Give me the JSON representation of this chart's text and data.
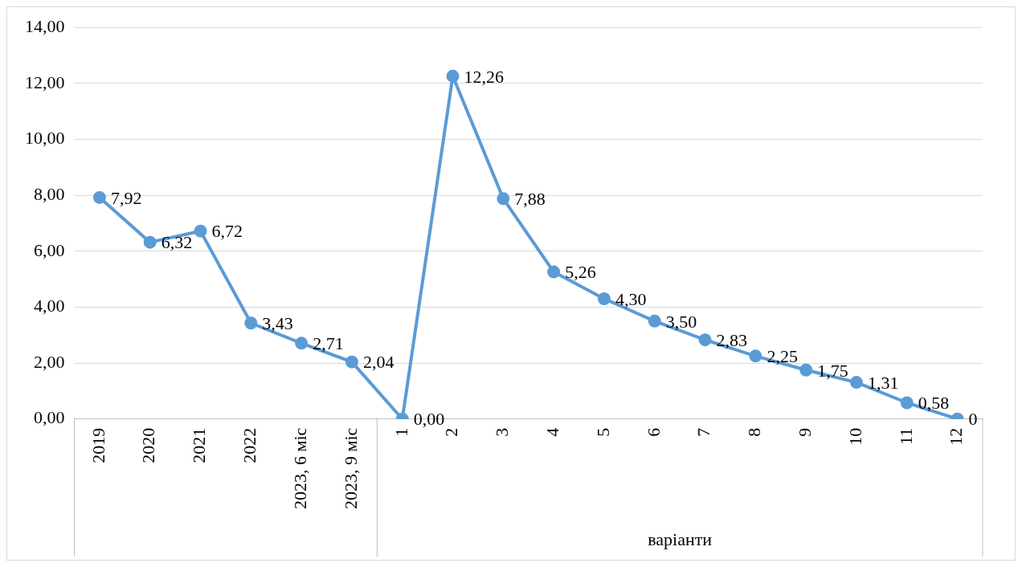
{
  "chart_data": {
    "type": "line",
    "xlabel": "варіанти",
    "categories": [
      "2019",
      "2020",
      "2021",
      "2022",
      "2023, 6 міс",
      "2023, 9 міс",
      "1",
      "2",
      "3",
      "4",
      "5",
      "6",
      "7",
      "8",
      "9",
      "10",
      "11",
      "12"
    ],
    "series": [
      {
        "color": "#5b9bd5",
        "values": [
          7.92,
          6.32,
          6.72,
          3.43,
          2.71,
          2.04,
          0.0,
          12.26,
          7.88,
          5.26,
          4.3,
          3.5,
          2.83,
          2.25,
          1.75,
          1.31,
          0.58,
          0
        ],
        "value_labels": [
          "7,92",
          "6,32",
          "6,72",
          "3,43",
          "2,71",
          "2,04",
          "0,00",
          "12,26",
          "7,88",
          "5,26",
          "4,30",
          "3,50",
          "2,83",
          "2,25",
          "1,75",
          "1,31",
          "0,58",
          "0"
        ]
      }
    ],
    "ylim": [
      0,
      14
    ],
    "yticks": [
      {
        "value": 0,
        "label": "0,00"
      },
      {
        "value": 2,
        "label": "2,00"
      },
      {
        "value": 4,
        "label": "4,00"
      },
      {
        "value": 6,
        "label": "6,00"
      },
      {
        "value": 8,
        "label": "8,00"
      },
      {
        "value": 10,
        "label": "10,00"
      },
      {
        "value": 12,
        "label": "12,00"
      },
      {
        "value": 14,
        "label": "14,00"
      }
    ],
    "grid": "y",
    "legend": false,
    "marker": "circle",
    "line_style": "solid"
  }
}
